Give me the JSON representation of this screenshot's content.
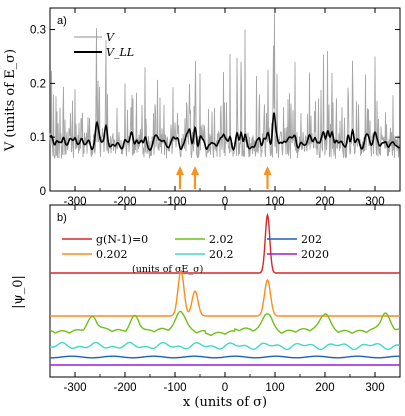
{
  "chart_data": [
    {
      "panel": "a)",
      "type": "line",
      "ylabel": "V  (units of E_σ)",
      "xlim": [
        -350,
        350
      ],
      "ylim": [
        0,
        0.34
      ],
      "xticks": [
        -300,
        -200,
        -100,
        0,
        100,
        200,
        300
      ],
      "yticks": [
        0,
        0.1,
        0.2,
        0.3
      ],
      "ytick_labels": [
        "0",
        "0.1",
        "0.2",
        "0.3"
      ],
      "legend_position": "top-left",
      "series": [
        {
          "name": "V",
          "color": "#a6a6a6"
        },
        {
          "name": "V_LL",
          "color": "#000000"
        }
      ],
      "arrow_x": [
        -90,
        -60,
        85
      ],
      "arrow_color": "#f7931e"
    },
    {
      "panel": "b)",
      "type": "line",
      "xlabel": "x  (units of σ)",
      "ylabel": "|ψ_0|",
      "xlim": [
        -350,
        350
      ],
      "xticks": [
        -300,
        -200,
        -100,
        0,
        100,
        200,
        300
      ],
      "legend_position": "top-left",
      "legend_note": "(units of σE_σ)",
      "series": [
        {
          "name": "g(N-1)=0",
          "color": "#d62728"
        },
        {
          "name": "0.202",
          "color": "#ff8c1a"
        },
        {
          "name": "2.02",
          "color": "#6fbf1a"
        },
        {
          "name": "20.2",
          "color": "#40d9c8"
        },
        {
          "name": "202",
          "color": "#1f5fbf"
        },
        {
          "name": "2020",
          "color": "#9b1fd6"
        }
      ],
      "peaks": {
        "g(N-1)=0": [
          {
            "x": 85,
            "height": 1
          }
        ],
        "0.202": [
          {
            "x": -88,
            "height": 1
          },
          {
            "x": -60,
            "height": 0.55
          },
          {
            "x": 85,
            "height": 0.8
          }
        ],
        "2.02": [
          {
            "x": -265,
            "height": 0.55
          },
          {
            "x": -180,
            "height": 0.7
          },
          {
            "x": -88,
            "height": 0.85
          },
          {
            "x": 85,
            "height": 0.85
          },
          {
            "x": 200,
            "height": 0.75
          },
          {
            "x": 320,
            "height": 0.7
          }
        ]
      }
    }
  ]
}
